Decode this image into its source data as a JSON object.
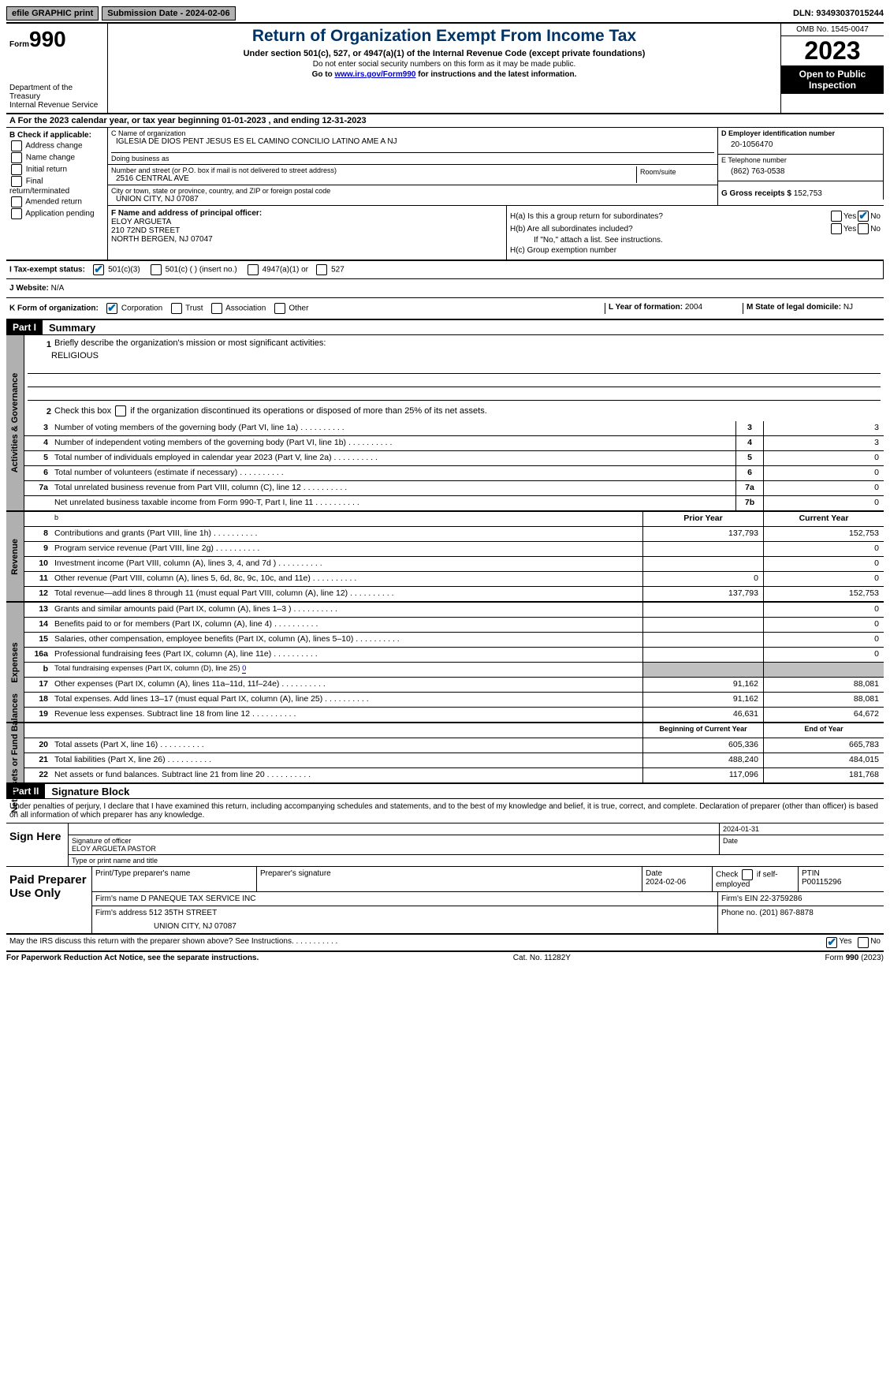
{
  "topbar": {
    "efile": "efile GRAPHIC print",
    "submission_label": "Submission Date - ",
    "submission_date": "2024-02-06",
    "dln_label": "DLN: ",
    "dln": "93493037015244"
  },
  "header": {
    "form_label": "Form",
    "form_num": "990",
    "dept": "Department of the Treasury\nInternal Revenue Service",
    "title": "Return of Organization Exempt From Income Tax",
    "sub1": "Under section 501(c), 527, or 4947(a)(1) of the Internal Revenue Code (except private foundations)",
    "sub2": "Do not enter social security numbers on this form as it may be made public.",
    "sub3_pre": "Go to ",
    "sub3_link": "www.irs.gov/Form990",
    "sub3_post": " for instructions and the latest information.",
    "omb": "OMB No. 1545-0047",
    "year": "2023",
    "inspect": "Open to Public Inspection"
  },
  "row_a": "A   For the 2023 calendar year, or tax year beginning 01-01-2023    , and ending 12-31-2023",
  "box_b": {
    "label": "B Check if applicable:",
    "opts": [
      "Address change",
      "Name change",
      "Initial return",
      "Final return/terminated",
      "Amended return",
      "Application pending"
    ]
  },
  "box_c": {
    "name_lbl": "C Name of organization",
    "name": "IGLESIA DE DIOS PENT JESUS ES EL CAMINO CONCILIO LATINO AME A NJ",
    "dba_lbl": "Doing business as",
    "dba": "",
    "addr_lbl": "Number and street (or P.O. box if mail is not delivered to street address)",
    "addr": "2516 CENTRAL AVE",
    "room_lbl": "Room/suite",
    "city_lbl": "City or town, state or province, country, and ZIP or foreign postal code",
    "city": "UNION CITY, NJ  07087"
  },
  "box_d": {
    "ein_lbl": "D Employer identification number",
    "ein": "20-1056470",
    "tel_lbl": "E Telephone number",
    "tel": "(862) 763-0538",
    "gross_lbl": "G Gross receipts $ ",
    "gross": "152,753"
  },
  "box_f": {
    "lbl": "F  Name and address of principal officer:",
    "name": "ELOY ARGUETA",
    "addr1": "210 72ND STREET",
    "addr2": "NORTH BERGEN, NJ  07047"
  },
  "box_h": {
    "a_lbl": "H(a)  Is this a group return for subordinates?",
    "a_yes": "Yes",
    "a_no": "No",
    "a_checked": "no",
    "b_lbl": "H(b)  Are all subordinates included?",
    "b_yes": "Yes",
    "b_no": "No",
    "b_note": "If \"No,\" attach a list. See instructions.",
    "c_lbl": "H(c)  Group exemption number "
  },
  "row_i": {
    "lbl": "I   Tax-exempt status:",
    "o1": "501(c)(3)",
    "o2": "501(c) (  ) (insert no.)",
    "o3": "4947(a)(1) or",
    "o4": "527",
    "checked": 0
  },
  "row_j": {
    "lbl": "J   Website:  ",
    "val": "N/A"
  },
  "row_k": {
    "lbl": "K Form of organization:",
    "opts": [
      "Corporation",
      "Trust",
      "Association",
      "Other"
    ],
    "checked": 0,
    "l_lbl": "L Year of formation: ",
    "l_val": "2004",
    "m_lbl": "M State of legal domicile: ",
    "m_val": "NJ"
  },
  "part1": {
    "hdr": "Part I",
    "title": "Summary"
  },
  "summary": {
    "side1": "Activities & Governance",
    "l1_lbl": "Briefly describe the organization's mission or most significant activities:",
    "l1_val": "RELIGIOUS",
    "l2_lbl": "Check this box          if the organization discontinued its operations or disposed of more than 25% of its net assets.",
    "lines_gov": [
      {
        "n": "3",
        "d": "Number of voting members of the governing body (Part VI, line 1a)",
        "c": "3",
        "v": "3"
      },
      {
        "n": "4",
        "d": "Number of independent voting members of the governing body (Part VI, line 1b)",
        "c": "4",
        "v": "3"
      },
      {
        "n": "5",
        "d": "Total number of individuals employed in calendar year 2023 (Part V, line 2a)",
        "c": "5",
        "v": "0"
      },
      {
        "n": "6",
        "d": "Total number of volunteers (estimate if necessary)",
        "c": "6",
        "v": "0"
      },
      {
        "n": "7a",
        "d": "Total unrelated business revenue from Part VIII, column (C), line 12",
        "c": "7a",
        "v": "0"
      },
      {
        "n": "",
        "d": "Net unrelated business taxable income from Form 990-T, Part I, line 11",
        "c": "7b",
        "v": "0"
      }
    ],
    "side2": "Revenue",
    "prior_hdr": "Prior Year",
    "cur_hdr": "Current Year",
    "lines_rev": [
      {
        "n": "8",
        "d": "Contributions and grants (Part VIII, line 1h)",
        "p": "137,793",
        "c": "152,753"
      },
      {
        "n": "9",
        "d": "Program service revenue (Part VIII, line 2g)",
        "p": "",
        "c": "0"
      },
      {
        "n": "10",
        "d": "Investment income (Part VIII, column (A), lines 3, 4, and 7d )",
        "p": "",
        "c": "0"
      },
      {
        "n": "11",
        "d": "Other revenue (Part VIII, column (A), lines 5, 6d, 8c, 9c, 10c, and 11e)",
        "p": "0",
        "c": "0"
      },
      {
        "n": "12",
        "d": "Total revenue—add lines 8 through 11 (must equal Part VIII, column (A), line 12)",
        "p": "137,793",
        "c": "152,753"
      }
    ],
    "side3": "Expenses",
    "lines_exp": [
      {
        "n": "13",
        "d": "Grants and similar amounts paid (Part IX, column (A), lines 1–3 )",
        "p": "",
        "c": "0"
      },
      {
        "n": "14",
        "d": "Benefits paid to or for members (Part IX, column (A), line 4)",
        "p": "",
        "c": "0"
      },
      {
        "n": "15",
        "d": "Salaries, other compensation, employee benefits (Part IX, column (A), lines 5–10)",
        "p": "",
        "c": "0"
      },
      {
        "n": "16a",
        "d": "Professional fundraising fees (Part IX, column (A), line 11e)",
        "p": "",
        "c": "0"
      },
      {
        "n": "b",
        "d": "Total fundraising expenses (Part IX, column (D), line 25) ",
        "p": "grey",
        "c": "grey",
        "fund": "0"
      },
      {
        "n": "17",
        "d": "Other expenses (Part IX, column (A), lines 11a–11d, 11f–24e)",
        "p": "91,162",
        "c": "88,081"
      },
      {
        "n": "18",
        "d": "Total expenses. Add lines 13–17 (must equal Part IX, column (A), line 25)",
        "p": "91,162",
        "c": "88,081"
      },
      {
        "n": "19",
        "d": "Revenue less expenses. Subtract line 18 from line 12",
        "p": "46,631",
        "c": "64,672"
      }
    ],
    "side4": "Net Assets or Fund Balances",
    "beg_hdr": "Beginning of Current Year",
    "end_hdr": "End of Year",
    "lines_net": [
      {
        "n": "20",
        "d": "Total assets (Part X, line 16)",
        "p": "605,336",
        "c": "665,783"
      },
      {
        "n": "21",
        "d": "Total liabilities (Part X, line 26)",
        "p": "488,240",
        "c": "484,015"
      },
      {
        "n": "22",
        "d": "Net assets or fund balances. Subtract line 21 from line 20",
        "p": "117,096",
        "c": "181,768"
      }
    ]
  },
  "part2": {
    "hdr": "Part II",
    "title": "Signature Block"
  },
  "sig": {
    "decl": "Under penalties of perjury, I declare that I have examined this return, including accompanying schedules and statements, and to the best of my knowledge and belief, it is true, correct, and complete. Declaration of preparer (other than officer) is based on all information of which preparer has any knowledge.",
    "sign_here": "Sign Here",
    "date_top": "2024-01-31",
    "sig_officer_lbl": "Signature of officer",
    "officer": "ELOY ARGUETA  PASTOR",
    "type_lbl": "Type or print name and title",
    "date_lbl": "Date"
  },
  "paid": {
    "title": "Paid Preparer Use Only",
    "h1": "Print/Type preparer's name",
    "h2": "Preparer's signature",
    "h3": "Date",
    "h3v": "2024-02-06",
    "h4": "Check         if self-employed",
    "h5": "PTIN",
    "h5v": "P00115296",
    "firm_lbl": "Firm's name      ",
    "firm": "D PANEQUE TAX SERVICE INC",
    "ein_lbl": "Firm's EIN  ",
    "ein": "22-3759286",
    "addr_lbl": "Firm's address ",
    "addr1": "512 35TH STREET",
    "addr2": "UNION CITY, NJ  07087",
    "phone_lbl": "Phone no. ",
    "phone": "(201) 867-8878"
  },
  "discuss": {
    "q": "May the IRS discuss this return with the preparer shown above? See Instructions.",
    "yes": "Yes",
    "no": "No",
    "checked": "yes"
  },
  "footer": {
    "l": "For Paperwork Reduction Act Notice, see the separate instructions.",
    "m": "Cat. No. 11282Y",
    "r": "Form 990 (2023)"
  }
}
